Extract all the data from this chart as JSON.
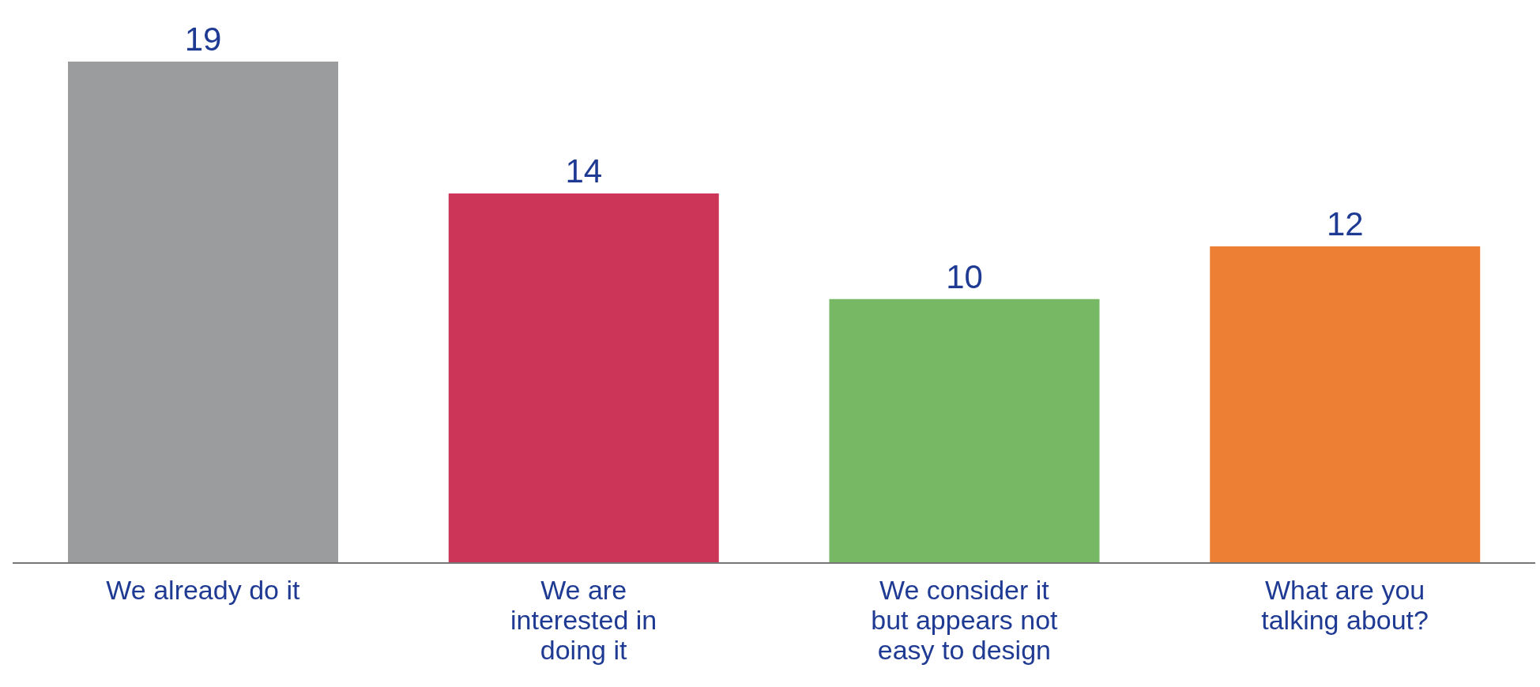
{
  "chart_data": {
    "type": "bar",
    "categories": [
      "We already do it",
      "We are interested in doing it",
      "We consider it but appears not easy to design",
      "What are you talking about?"
    ],
    "values": [
      19,
      14,
      10,
      12
    ],
    "colors": [
      "#9b9c9e",
      "#cc3557",
      "#77b865",
      "#ec7f33"
    ],
    "data_labels": true,
    "grid": false,
    "legend": false
  }
}
